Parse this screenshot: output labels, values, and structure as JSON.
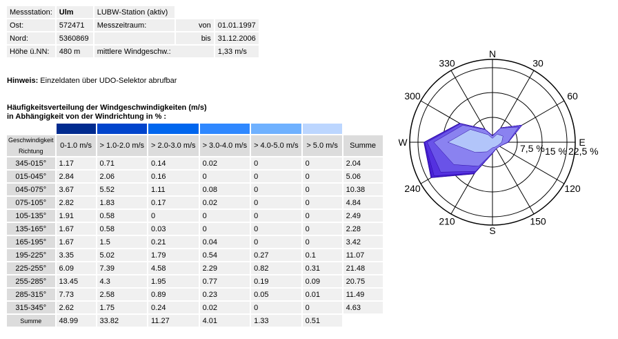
{
  "station": {
    "label_station": "Messstation:",
    "name": "Ulm",
    "type": "LUBW-Station (aktiv)",
    "label_ost": "Ost:",
    "ost": "572471",
    "label_period": "Messzeitraum:",
    "von_label": "von",
    "von": "01.01.1997",
    "label_nord": "Nord:",
    "nord": "5360869",
    "bis_label": "bis",
    "bis": "31.12.2006",
    "label_hoehe": "Höhe ü.NN:",
    "hoehe": "480 m",
    "label_mean": "mittlere Windgeschw.:",
    "mean": "1,33 m/s"
  },
  "hint": {
    "bold": "Hinweis:",
    "text": " Einzeldaten über UDO-Selektor abrufbar"
  },
  "table": {
    "title_line1": "Häufigkeitsverteilung der Windgeschwindigkeiten (m/s)",
    "title_line2": "in Abhängigkeit von der Windrichtung in % :",
    "swatches": [
      "#002b8f",
      "#0044cc",
      "#0066ee",
      "#2f88ff",
      "#6fb1ff",
      "#bcd6ff"
    ],
    "corner_top": "Geschwindigkeit",
    "corner_bottom": "Richtung",
    "headers": [
      "0-1.0 m/s",
      "> 1.0-2.0 m/s",
      "> 2.0-3.0 m/s",
      "> 3.0-4.0 m/s",
      "> 4.0-5.0 m/s",
      "> 5.0 m/s",
      "Summe"
    ],
    "rows": [
      {
        "dir": "345-015°",
        "values": [
          "1.17",
          "0.71",
          "0.14",
          "0.02",
          "0",
          "0",
          "2.04"
        ]
      },
      {
        "dir": "015-045°",
        "values": [
          "2.84",
          "2.06",
          "0.16",
          "0",
          "0",
          "0",
          "5.06"
        ]
      },
      {
        "dir": "045-075°",
        "values": [
          "3.67",
          "5.52",
          "1.11",
          "0.08",
          "0",
          "0",
          "10.38"
        ]
      },
      {
        "dir": "075-105°",
        "values": [
          "2.82",
          "1.83",
          "0.17",
          "0.02",
          "0",
          "0",
          "4.84"
        ]
      },
      {
        "dir": "105-135°",
        "values": [
          "1.91",
          "0.58",
          "0",
          "0",
          "0",
          "0",
          "2.49"
        ]
      },
      {
        "dir": "135-165°",
        "values": [
          "1.67",
          "0.58",
          "0.03",
          "0",
          "0",
          "0",
          "2.28"
        ]
      },
      {
        "dir": "165-195°",
        "values": [
          "1.67",
          "1.5",
          "0.21",
          "0.04",
          "0",
          "0",
          "3.42"
        ]
      },
      {
        "dir": "195-225°",
        "values": [
          "3.35",
          "5.02",
          "1.79",
          "0.54",
          "0.27",
          "0.1",
          "11.07"
        ]
      },
      {
        "dir": "225-255°",
        "values": [
          "6.09",
          "7.39",
          "4.58",
          "2.29",
          "0.82",
          "0.31",
          "21.48"
        ]
      },
      {
        "dir": "255-285°",
        "values": [
          "13.45",
          "4.3",
          "1.95",
          "0.77",
          "0.19",
          "0.09",
          "20.75"
        ]
      },
      {
        "dir": "285-315°",
        "values": [
          "7.73",
          "2.58",
          "0.89",
          "0.23",
          "0.05",
          "0.01",
          "11.49"
        ]
      },
      {
        "dir": "315-345°",
        "values": [
          "2.62",
          "1.75",
          "0.24",
          "0.02",
          "0",
          "0",
          "4.63"
        ]
      }
    ],
    "sum_label": "Summe",
    "sums": [
      "48.99",
      "33.82",
      "11.27",
      "4.01",
      "1.33",
      "0.51"
    ]
  },
  "rose": {
    "directions": [
      "N",
      "30",
      "60",
      "E",
      "120",
      "150",
      "S",
      "210",
      "240",
      "W",
      "300",
      "330"
    ],
    "ring_labels": [
      "7,5 %",
      "15 %",
      "22,5 %"
    ],
    "ring_values": [
      7.5,
      15,
      22.5
    ],
    "colors": [
      "#3a10c8",
      "#4a22d8",
      "#5533e0",
      "#6a55e8",
      "#8c85f0",
      "#b4c8fa"
    ]
  }
}
